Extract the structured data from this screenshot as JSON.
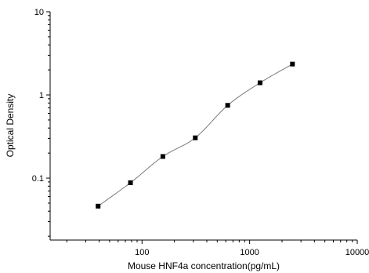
{
  "chart_data": {
    "type": "scatter",
    "title": "",
    "xlabel": "Mouse HNF4a concentration(pg/mL)",
    "ylabel": "Optical Density",
    "x_scale": "log",
    "y_scale": "log",
    "xlim": [
      14,
      10000
    ],
    "ylim": [
      0.018,
      10
    ],
    "x_ticks": [
      {
        "value": 100,
        "label": "100"
      },
      {
        "value": 1000,
        "label": "1000"
      },
      {
        "value": 10000,
        "label": "10000"
      }
    ],
    "y_ticks": [
      {
        "value": 0.1,
        "label": "0.1"
      },
      {
        "value": 1,
        "label": "1"
      },
      {
        "value": 10,
        "label": "10"
      }
    ],
    "grid": false,
    "colors": {
      "points": "#000000",
      "curve": "#7a7a7a",
      "axes": "#000000"
    },
    "series": [
      {
        "x": [
          39.0625,
          78.125,
          156.25,
          312.5,
          625,
          1250,
          2500
        ],
        "y": [
          0.046,
          0.088,
          0.182,
          0.305,
          0.75,
          1.4,
          2.35
        ]
      }
    ]
  }
}
